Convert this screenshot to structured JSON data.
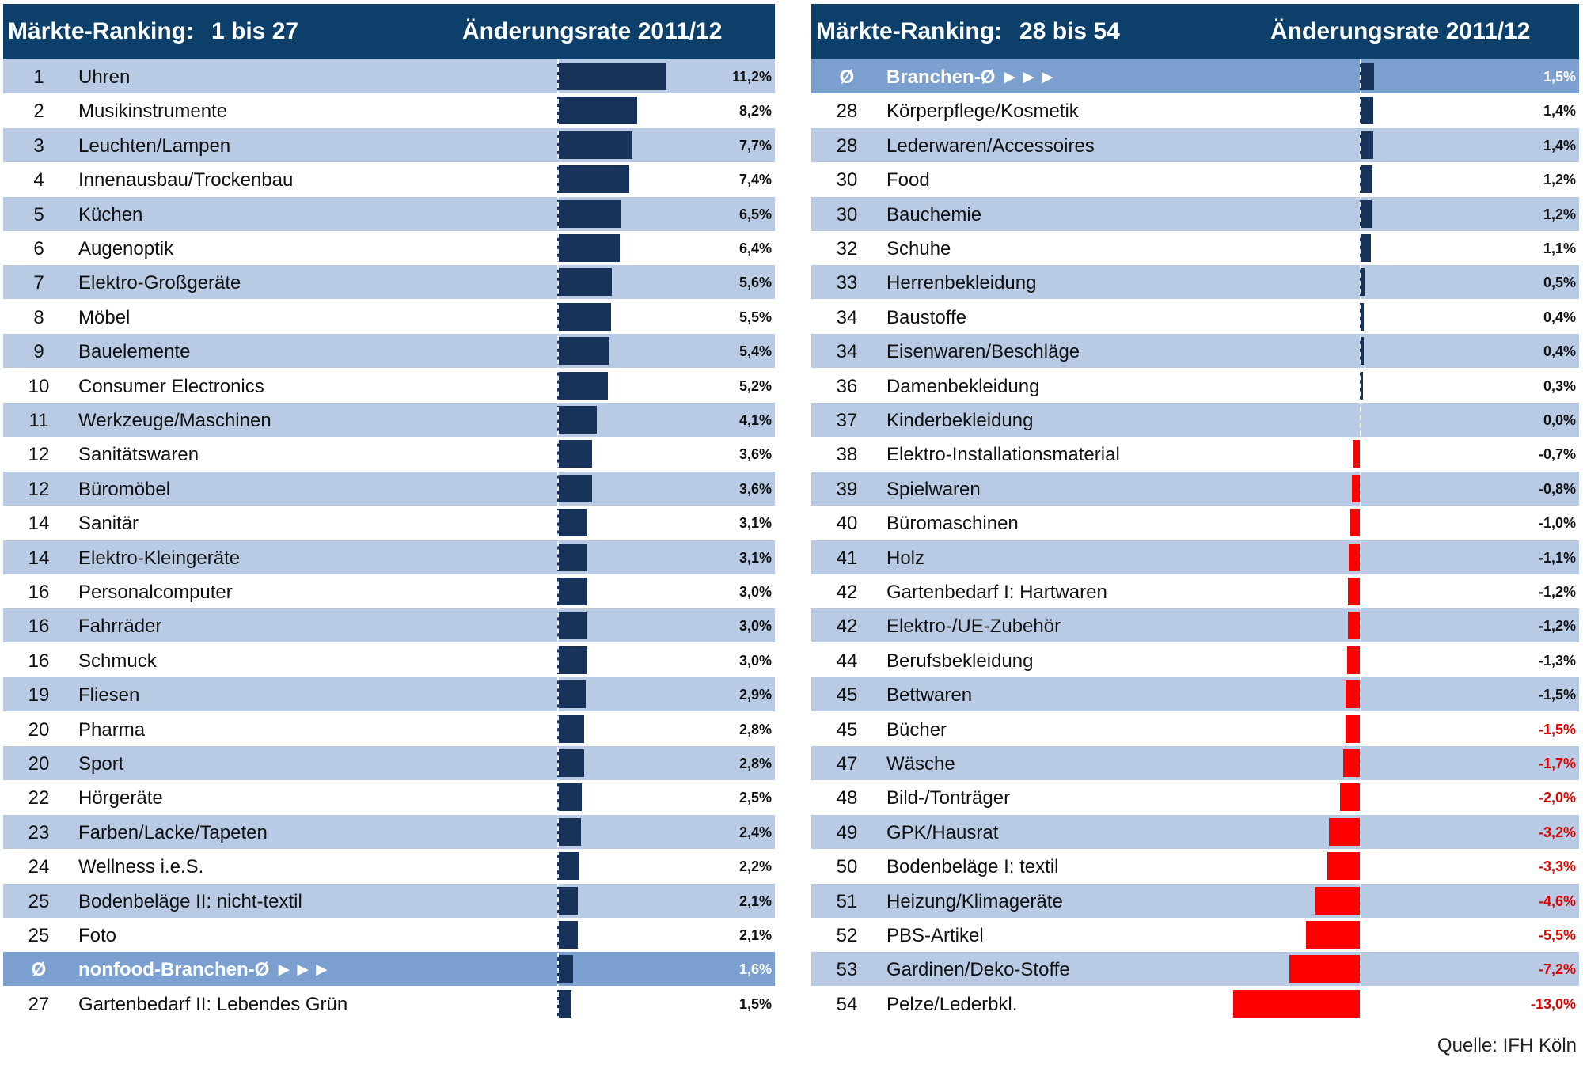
{
  "left": {
    "header": {
      "label": "Märkte-Ranking:",
      "range": "1 bis 27",
      "change": "Änderungsrate 2011/12"
    },
    "rows": [
      {
        "rank": "1",
        "name": "Uhren",
        "value": 11.2,
        "label": "11,2%"
      },
      {
        "rank": "2",
        "name": "Musikinstrumente",
        "value": 8.2,
        "label": "8,2%"
      },
      {
        "rank": "3",
        "name": "Leuchten/Lampen",
        "value": 7.7,
        "label": "7,7%"
      },
      {
        "rank": "4",
        "name": "Innenausbau/Trockenbau",
        "value": 7.4,
        "label": "7,4%"
      },
      {
        "rank": "5",
        "name": "Küchen",
        "value": 6.5,
        "label": "6,5%"
      },
      {
        "rank": "6",
        "name": "Augenoptik",
        "value": 6.4,
        "label": "6,4%"
      },
      {
        "rank": "7",
        "name": "Elektro-Großgeräte",
        "value": 5.6,
        "label": "5,6%"
      },
      {
        "rank": "8",
        "name": "Möbel",
        "value": 5.5,
        "label": "5,5%"
      },
      {
        "rank": "9",
        "name": "Bauelemente",
        "value": 5.4,
        "label": "5,4%"
      },
      {
        "rank": "10",
        "name": "Consumer Electronics",
        "value": 5.2,
        "label": "5,2%"
      },
      {
        "rank": "11",
        "name": "Werkzeuge/Maschinen",
        "value": 4.1,
        "label": "4,1%"
      },
      {
        "rank": "12",
        "name": "Sanitätswaren",
        "value": 3.6,
        "label": "3,6%"
      },
      {
        "rank": "12",
        "name": "Büromöbel",
        "value": 3.6,
        "label": "3,6%"
      },
      {
        "rank": "14",
        "name": "Sanitär",
        "value": 3.1,
        "label": "3,1%"
      },
      {
        "rank": "14",
        "name": "Elektro-Kleingeräte",
        "value": 3.1,
        "label": "3,1%"
      },
      {
        "rank": "16",
        "name": "Personalcomputer",
        "value": 3.0,
        "label": "3,0%"
      },
      {
        "rank": "16",
        "name": "Fahrräder",
        "value": 3.0,
        "label": "3,0%"
      },
      {
        "rank": "16",
        "name": "Schmuck",
        "value": 3.0,
        "label": "3,0%"
      },
      {
        "rank": "19",
        "name": "Fliesen",
        "value": 2.9,
        "label": "2,9%"
      },
      {
        "rank": "20",
        "name": "Pharma",
        "value": 2.8,
        "label": "2,8%"
      },
      {
        "rank": "20",
        "name": "Sport",
        "value": 2.8,
        "label": "2,8%"
      },
      {
        "rank": "22",
        "name": "Hörgeräte",
        "value": 2.5,
        "label": "2,5%"
      },
      {
        "rank": "23",
        "name": "Farben/Lacke/Tapeten",
        "value": 2.4,
        "label": "2,4%"
      },
      {
        "rank": "24",
        "name": "Wellness i.e.S.",
        "value": 2.2,
        "label": "2,2%"
      },
      {
        "rank": "25",
        "name": "Bodenbeläge II: nicht-textil",
        "value": 2.1,
        "label": "2,1%"
      },
      {
        "rank": "25",
        "name": "Foto",
        "value": 2.1,
        "label": "2,1%"
      },
      {
        "rank": "Ø",
        "name": "nonfood-Branchen-Ø ►►►",
        "value": 1.6,
        "label": "1,6%",
        "avg": true
      },
      {
        "rank": "27",
        "name": "Gartenbedarf II: Lebendes Grün",
        "value": 1.5,
        "label": "1,5%"
      }
    ]
  },
  "right": {
    "header": {
      "label": "Märkte-Ranking:",
      "range": "28 bis 54",
      "change": "Änderungsrate 2011/12"
    },
    "rows": [
      {
        "rank": "Ø",
        "name": "Branchen-Ø ►►►",
        "value": 1.5,
        "label": "1,5%",
        "avg": true
      },
      {
        "rank": "28",
        "name": "Körperpflege/Kosmetik",
        "value": 1.4,
        "label": "1,4%"
      },
      {
        "rank": "28",
        "name": "Lederwaren/Accessoires",
        "value": 1.4,
        "label": "1,4%"
      },
      {
        "rank": "30",
        "name": "Food",
        "value": 1.2,
        "label": "1,2%"
      },
      {
        "rank": "30",
        "name": "Bauchemie",
        "value": 1.2,
        "label": "1,2%"
      },
      {
        "rank": "32",
        "name": "Schuhe",
        "value": 1.1,
        "label": "1,1%"
      },
      {
        "rank": "33",
        "name": "Herrenbekleidung",
        "value": 0.5,
        "label": "0,5%"
      },
      {
        "rank": "34",
        "name": "Baustoffe",
        "value": 0.4,
        "label": "0,4%"
      },
      {
        "rank": "34",
        "name": "Eisenwaren/Beschläge",
        "value": 0.4,
        "label": "0,4%"
      },
      {
        "rank": "36",
        "name": "Damenbekleidung",
        "value": 0.3,
        "label": "0,3%"
      },
      {
        "rank": "37",
        "name": "Kinderbekleidung",
        "value": 0.0,
        "label": "0,0%"
      },
      {
        "rank": "38",
        "name": "Elektro-Installationsmaterial",
        "value": -0.7,
        "label": "-0,7%"
      },
      {
        "rank": "39",
        "name": "Spielwaren",
        "value": -0.8,
        "label": "-0,8%"
      },
      {
        "rank": "40",
        "name": "Büromaschinen",
        "value": -1.0,
        "label": "-1,0%"
      },
      {
        "rank": "41",
        "name": "Holz",
        "value": -1.1,
        "label": "-1,1%"
      },
      {
        "rank": "42",
        "name": "Gartenbedarf I: Hartwaren",
        "value": -1.2,
        "label": "-1,2%"
      },
      {
        "rank": "42",
        "name": "Elektro-/UE-Zubehör",
        "value": -1.2,
        "label": "-1,2%"
      },
      {
        "rank": "44",
        "name": "Berufsbekleidung",
        "value": -1.3,
        "label": "-1,3%"
      },
      {
        "rank": "45",
        "name": "Bettwaren",
        "value": -1.5,
        "label": "-1,5%"
      },
      {
        "rank": "45",
        "name": "Bücher",
        "value": -1.5,
        "label": "-1,5%",
        "red": true
      },
      {
        "rank": "47",
        "name": "Wäsche",
        "value": -1.7,
        "label": "-1,7%",
        "red": true
      },
      {
        "rank": "48",
        "name": "Bild-/Tonträger",
        "value": -2.0,
        "label": "-2,0%",
        "red": true
      },
      {
        "rank": "49",
        "name": "GPK/Hausrat",
        "value": -3.2,
        "label": "-3,2%",
        "red": true
      },
      {
        "rank": "50",
        "name": "Bodenbeläge I: textil",
        "value": -3.3,
        "label": "-3,3%",
        "red": true
      },
      {
        "rank": "51",
        "name": "Heizung/Klimageräte",
        "value": -4.6,
        "label": "-4,6%",
        "red": true
      },
      {
        "rank": "52",
        "name": "PBS-Artikel",
        "value": -5.5,
        "label": "-5,5%",
        "red": true
      },
      {
        "rank": "53",
        "name": "Gardinen/Deko-Stoffe",
        "value": -7.2,
        "label": "-7,2%",
        "red": true
      },
      {
        "rank": "54",
        "name": "Pelze/Lederbkl.",
        "value": -13.0,
        "label": "-13,0%",
        "red": true
      }
    ]
  },
  "source": "Quelle: IFH Köln",
  "chart_data": {
    "type": "bar",
    "orientation": "horizontal",
    "series": [
      {
        "values": [
          11.2,
          8.2,
          7.7,
          7.4,
          6.5,
          6.4,
          5.6,
          5.5,
          5.4,
          5.2,
          4.1,
          3.6,
          3.6,
          3.1,
          3.1,
          3.0,
          3.0,
          3.0,
          2.9,
          2.8,
          2.8,
          2.5,
          2.4,
          2.2,
          2.1,
          2.1,
          1.6,
          1.5,
          1.5,
          1.4,
          1.4,
          1.2,
          1.2,
          1.1,
          0.5,
          0.4,
          0.4,
          0.3,
          0.0,
          -0.7,
          -0.8,
          -1.0,
          -1.1,
          -1.2,
          -1.2,
          -1.3,
          -1.5,
          -1.5,
          -1.7,
          -2.0,
          -3.2,
          -3.3,
          -4.6,
          -5.5,
          -7.2,
          -13.0
        ]
      }
    ],
    "colors": {
      "header": "#0c3f6a",
      "row_alt": "#b9cbe4",
      "row_avg": "#7ba0cf",
      "bar_positive": "#17335a",
      "bar_negative": "#ff0000",
      "text_negative": "#e00000"
    }
  }
}
